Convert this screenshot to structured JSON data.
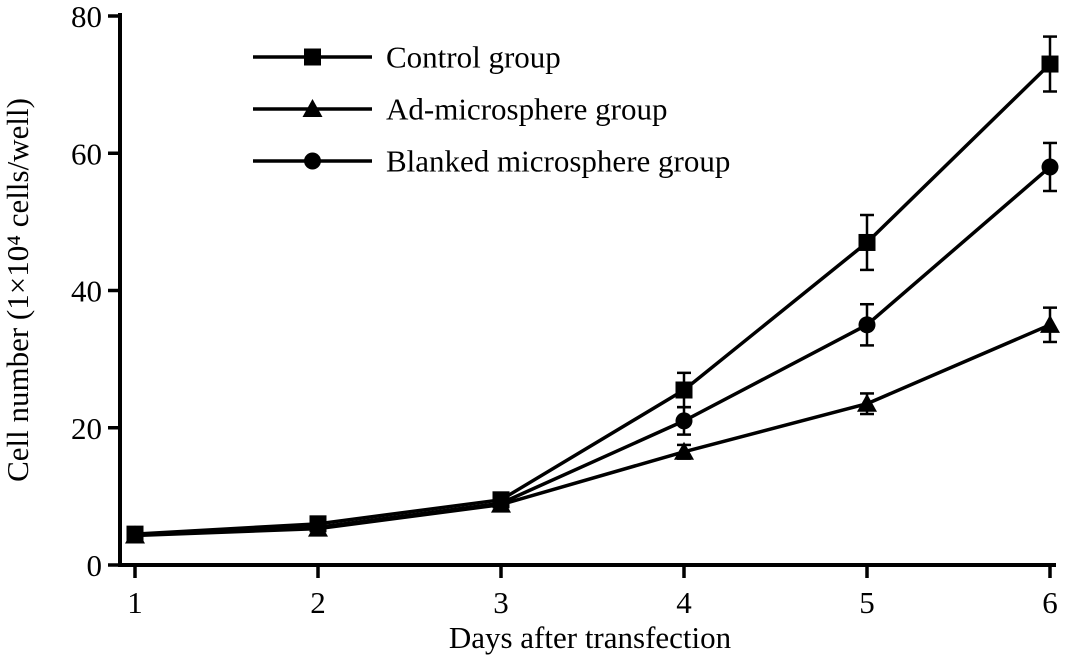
{
  "figure": {
    "background": "#ffffff",
    "ink_color": "#000000"
  },
  "chart_data": {
    "type": "line",
    "title": "",
    "xlabel": "Days after transfection",
    "ylabel": "Cell number (1×10⁴ cells/well)",
    "x": [
      1,
      2,
      3,
      4,
      5,
      6
    ],
    "xticks": [
      1,
      2,
      3,
      4,
      5,
      6
    ],
    "yticks": [
      0,
      20,
      40,
      60,
      80
    ],
    "ylim": [
      0,
      80
    ],
    "xlim": [
      1,
      6
    ],
    "grid": false,
    "legend_position": "top-left",
    "series": [
      {
        "name": "Control group",
        "marker": "square",
        "values": [
          4.5,
          6,
          9.5,
          25.5,
          47,
          73
        ],
        "errors": [
          0.8,
          1,
          1,
          2.5,
          4,
          4
        ]
      },
      {
        "name": "Ad-microsphere group",
        "marker": "triangle",
        "values": [
          4.3,
          5.3,
          8.8,
          16.5,
          23.5,
          35
        ],
        "errors": [
          0.7,
          0.8,
          0.8,
          1,
          1.5,
          2.5
        ]
      },
      {
        "name": "Blanked microsphere group",
        "marker": "circle",
        "values": [
          4.4,
          5.5,
          9,
          21,
          35,
          58
        ],
        "errors": [
          0.7,
          0.8,
          0.8,
          2,
          3,
          3.5
        ]
      }
    ]
  }
}
